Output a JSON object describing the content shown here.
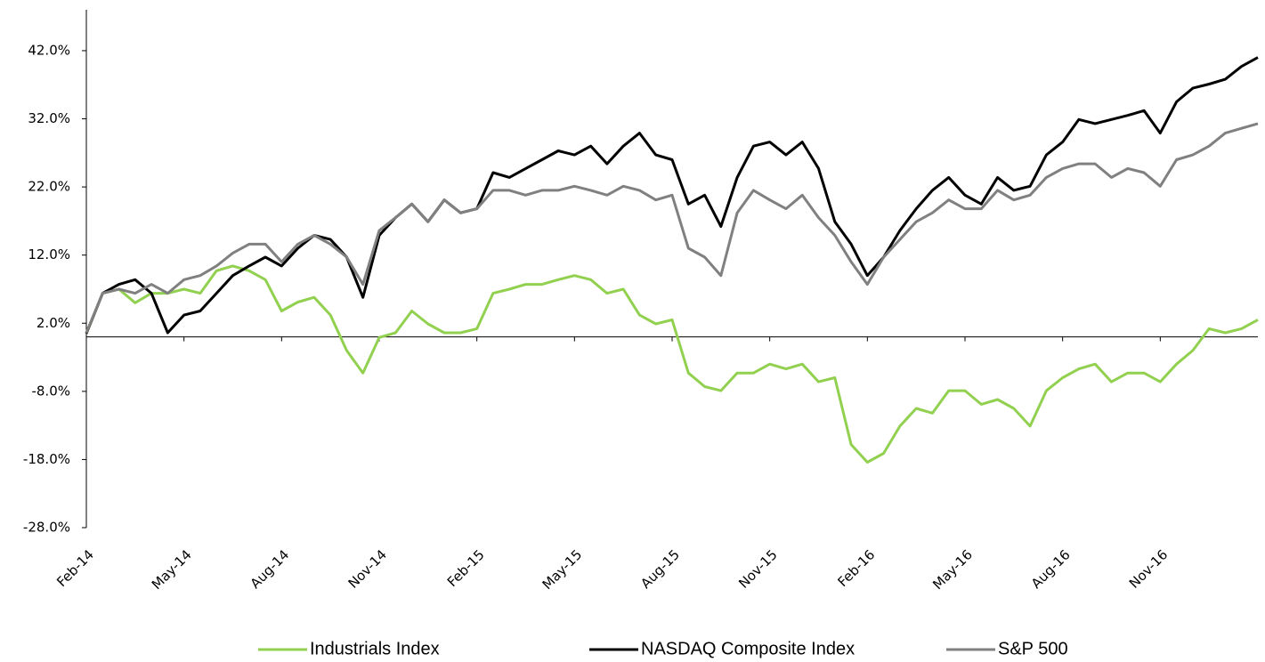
{
  "chart_data": {
    "type": "line",
    "categories": [
      "Feb-14",
      null,
      null,
      null,
      null,
      null,
      "May-14",
      null,
      null,
      null,
      null,
      null,
      "Aug-14",
      null,
      null,
      null,
      null,
      null,
      "Nov-14",
      null,
      null,
      null,
      null,
      null,
      "Feb-15",
      null,
      null,
      null,
      null,
      null,
      "May-15",
      null,
      null,
      null,
      null,
      null,
      "Aug-15",
      null,
      null,
      null,
      null,
      null,
      "Nov-15",
      null,
      null,
      null,
      null,
      null,
      "Feb-16",
      null,
      null,
      null,
      null,
      null,
      "May-16",
      null,
      null,
      null,
      null,
      null,
      "Aug-16",
      null,
      null,
      null,
      null,
      null,
      "Nov-16",
      null,
      null,
      null,
      null,
      null,
      null
    ],
    "series": [
      {
        "name": "Industrials Index",
        "color": "#92d050",
        "values": [
          0.5,
          6.4,
          7,
          5,
          6.4,
          6.4,
          7,
          6.4,
          9.7,
          10.4,
          9.7,
          8.4,
          3.8,
          5.1,
          5.8,
          3.2,
          -2,
          -5.3,
          -0.1,
          0.6,
          3.8,
          1.9,
          0.6,
          0.6,
          1.2,
          6.4,
          7,
          7.7,
          7.7,
          8.4,
          9,
          8.4,
          6.4,
          7,
          3.2,
          1.9,
          2.5,
          -5.3,
          -7.3,
          -7.9,
          -5.3,
          -5.3,
          -4,
          -4.7,
          -4,
          -6.6,
          -6,
          -15.8,
          -18.4,
          -17.1,
          -13.1,
          -10.5,
          -11.2,
          -7.9,
          -7.9,
          -9.9,
          -9.2,
          -10.5,
          -13.1,
          -7.9,
          -6,
          -4.7,
          -4,
          -6.6,
          -5.3,
          -5.3,
          -6.6,
          -4,
          -2,
          1.2,
          0.6,
          1.2,
          2.5
        ]
      },
      {
        "name": "NASDAQ Composite Index",
        "color": "#000000",
        "values": [
          0.5,
          6.4,
          7.7,
          8.4,
          6.4,
          0.6,
          3.2,
          3.8,
          6.4,
          9,
          10.4,
          11.7,
          10.4,
          13,
          14.9,
          14.3,
          11.7,
          5.8,
          14.9,
          17.5,
          19.5,
          16.9,
          20.1,
          18.2,
          18.8,
          24.1,
          23.4,
          24.7,
          26,
          27.3,
          26.7,
          28,
          25.4,
          28,
          29.9,
          26.7,
          26,
          19.5,
          20.8,
          16.2,
          23.4,
          28,
          28.6,
          26.7,
          28.6,
          24.7,
          16.9,
          13.6,
          9,
          11.7,
          15.6,
          18.8,
          21.5,
          23.4,
          20.8,
          19.5,
          23.4,
          21.5,
          22.1,
          26.7,
          28.6,
          31.9,
          31.3,
          31.9,
          32.5,
          33.2,
          29.9,
          34.5,
          36.5,
          37.1,
          37.8,
          39.7,
          41
        ]
      },
      {
        "name": "S&P 500",
        "color": "#808080",
        "values": [
          0.6,
          6.4,
          7,
          6.4,
          7.7,
          6.4,
          8.4,
          9,
          10.4,
          12.3,
          13.6,
          13.6,
          11,
          13.6,
          14.9,
          13.6,
          11.7,
          7.7,
          15.6,
          17.5,
          19.5,
          16.9,
          20.1,
          18.2,
          18.8,
          21.5,
          21.5,
          20.8,
          21.5,
          21.5,
          22.1,
          21.5,
          20.8,
          22.1,
          21.5,
          20.1,
          20.8,
          13,
          11.7,
          9,
          18.2,
          21.5,
          20.1,
          18.8,
          20.8,
          17.5,
          14.9,
          11,
          7.7,
          11.7,
          14.3,
          16.9,
          18.2,
          20.1,
          18.8,
          18.8,
          21.5,
          20.1,
          20.8,
          23.4,
          24.7,
          25.4,
          25.4,
          23.4,
          24.7,
          24.1,
          22.1,
          26,
          26.7,
          28,
          29.9,
          30.6,
          31.3
        ]
      }
    ],
    "ylim": [
      -28,
      48
    ],
    "yticks": [
      {
        "value": -28,
        "label": "-28.0%"
      },
      {
        "value": -18,
        "label": "-18.0%"
      },
      {
        "value": -8,
        "label": "-8.0%"
      },
      {
        "value": 2,
        "label": "2.0%"
      },
      {
        "value": 12,
        "label": "12.0%"
      },
      {
        "value": 22,
        "label": "22.0%"
      },
      {
        "value": 32,
        "label": "32.0%"
      },
      {
        "value": 42,
        "label": "42.0%"
      }
    ],
    "legend": "bottom"
  }
}
